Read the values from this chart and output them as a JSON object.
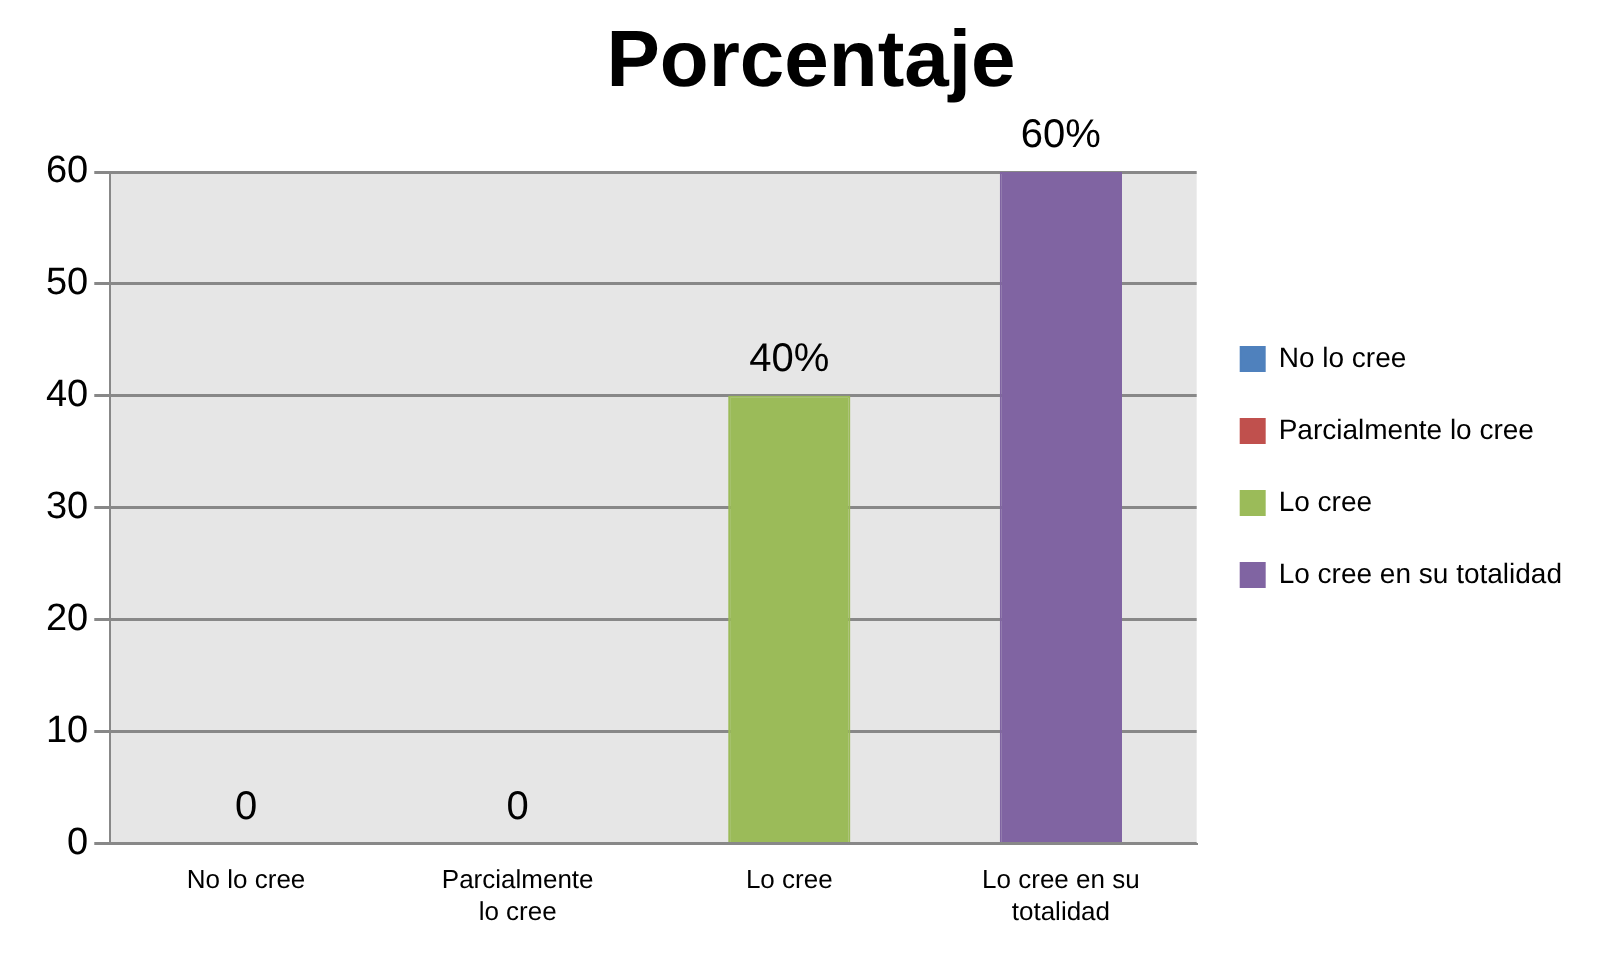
{
  "chart_data": {
    "type": "bar",
    "title": "Porcentaje",
    "categories": [
      "No lo cree",
      "Parcialmente lo cree",
      "Lo cree",
      "Lo cree en su totalidad"
    ],
    "series": [
      {
        "name": "No lo cree",
        "color": "#4f81bd",
        "values": [
          0,
          null,
          null,
          null
        ],
        "value_labels": [
          "0",
          null,
          null,
          null
        ]
      },
      {
        "name": "Parcialmente lo cree",
        "color": "#c0504d",
        "values": [
          null,
          0,
          null,
          null
        ],
        "value_labels": [
          null,
          "0",
          null,
          null
        ]
      },
      {
        "name": "Lo cree",
        "color": "#9bbb59",
        "values": [
          null,
          null,
          40,
          null
        ],
        "value_labels": [
          null,
          null,
          "40%",
          null
        ]
      },
      {
        "name": "Lo cree en su totalidad",
        "color": "#8064a2",
        "values": [
          null,
          null,
          null,
          60
        ],
        "value_labels": [
          null,
          null,
          null,
          "60%"
        ]
      }
    ],
    "stacked": true,
    "ylim": [
      0,
      60
    ],
    "yticks": [
      0,
      10,
      20,
      30,
      40,
      50,
      60
    ],
    "grid": "y",
    "legend": "right"
  }
}
